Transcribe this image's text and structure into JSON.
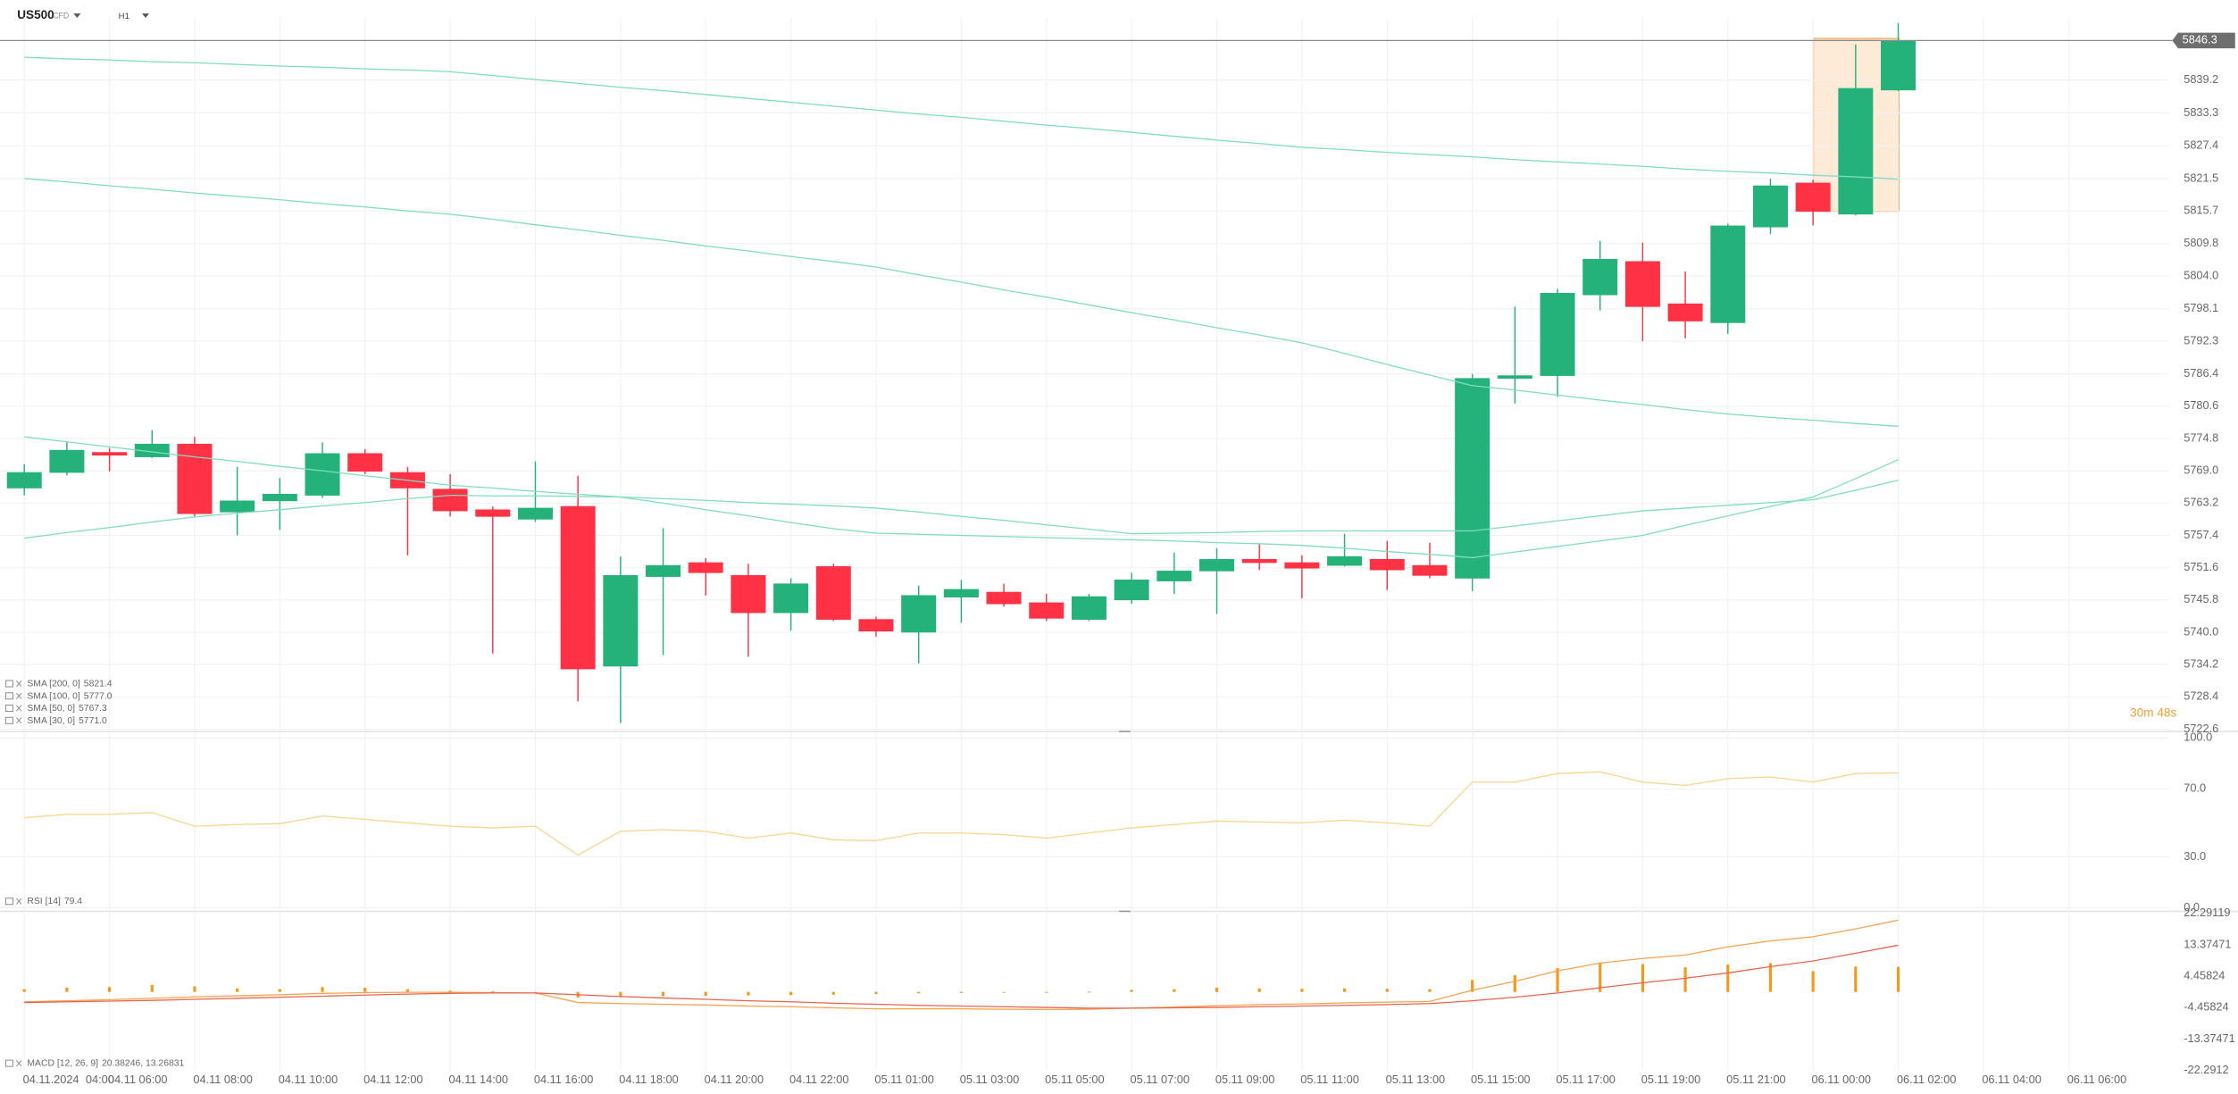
{
  "header": {
    "symbol": "US500",
    "instrument_type": "CFD",
    "timeframe": "H1"
  },
  "chart_data": [
    {
      "type": "candlestick",
      "date_label": "04.11.2024",
      "categories": [
        "04:00",
        null,
        "04.11 06:00",
        null,
        "04.11 08:00",
        null,
        "04.11 10:00",
        null,
        "04.11 12:00",
        null,
        "04.11 14:00",
        null,
        "04.11 16:00",
        null,
        "04.11 18:00",
        null,
        "04.11 20:00",
        null,
        "04.11 22:00",
        null,
        "05.11 01:00",
        null,
        "05.11 03:00",
        null,
        "05.11 05:00",
        null,
        "05.11 07:00",
        null,
        "05.11 09:00",
        null,
        "05.11 11:00",
        null,
        "05.11 13:00",
        null,
        "05.11 15:00",
        null,
        "05.11 17:00",
        null,
        "05.11 19:00",
        null,
        "05.11 21:00",
        null,
        "06.11 00:00",
        null,
        "06.11 02:00",
        null,
        "06.11 04:00",
        null,
        "06.11 06:00"
      ],
      "open": [
        5765.9,
        5768.7,
        5772.3,
        5771.5,
        5773.8,
        5761.6,
        5763.6,
        5764.6,
        5772.1,
        5768.7,
        5765.7,
        5762.0,
        5760.3,
        5762.6,
        5733.9,
        5750.0,
        5752.5,
        5750.2,
        5743.5,
        5751.8,
        5742.3,
        5740.0,
        5746.3,
        5747.2,
        5745.3,
        5742.3,
        5745.8,
        5749.2,
        5751.0,
        5753.1,
        5752.5,
        5752.0,
        5753.1,
        5752.0,
        5749.7,
        5785.6,
        5786.1,
        5800.6,
        5806.6,
        5799.0,
        5795.6,
        5812.8,
        5820.7,
        5815.1,
        5837.4,
        null,
        null,
        null,
        null
      ],
      "high": [
        5770.2,
        5774.2,
        5773.1,
        5776.3,
        5775.1,
        5769.7,
        5767.7,
        5774.1,
        5772.9,
        5769.7,
        5768.4,
        5762.6,
        5770.7,
        5768.1,
        5753.6,
        5758.7,
        5753.3,
        5752.3,
        5749.7,
        5752.3,
        5742.8,
        5748.4,
        5749.4,
        5748.7,
        5746.9,
        5746.9,
        5750.7,
        5754.3,
        5755.1,
        5755.9,
        5753.8,
        5757.7,
        5756.4,
        5756.1,
        5786.4,
        5798.5,
        5801.7,
        5810.3,
        5810.0,
        5804.8,
        5813.4,
        5821.5,
        5821.3,
        5845.6,
        5849.4,
        null,
        null,
        null,
        null
      ],
      "low": [
        5764.6,
        5768.2,
        5768.9,
        5771.3,
        5760.8,
        5757.4,
        5758.4,
        5764.1,
        5768.4,
        5753.8,
        5760.8,
        5736.2,
        5759.8,
        5727.6,
        5723.7,
        5735.9,
        5746.6,
        5735.6,
        5740.3,
        5742.0,
        5739.2,
        5734.4,
        5741.7,
        5744.6,
        5742.0,
        5742.0,
        5745.1,
        5746.9,
        5743.3,
        5751.2,
        5746.1,
        5751.8,
        5747.6,
        5749.7,
        5747.4,
        5781.1,
        5782.3,
        5797.8,
        5792.3,
        5792.8,
        5793.6,
        5811.5,
        5813.1,
        5814.9,
        5837.2,
        null,
        null,
        null,
        null
      ],
      "close": [
        5768.7,
        5772.7,
        5771.8,
        5773.8,
        5761.3,
        5763.6,
        5764.8,
        5772.1,
        5768.9,
        5765.9,
        5761.8,
        5760.8,
        5762.3,
        5733.4,
        5750.2,
        5752.0,
        5750.7,
        5743.5,
        5748.7,
        5742.3,
        5740.2,
        5746.6,
        5747.7,
        5745.1,
        5742.5,
        5746.4,
        5749.4,
        5751.0,
        5753.1,
        5752.5,
        5751.5,
        5753.6,
        5751.2,
        5750.2,
        5785.6,
        5786.1,
        5800.9,
        5807.0,
        5798.5,
        5795.9,
        5813.0,
        5820.2,
        5815.6,
        5837.7,
        5846.3,
        null,
        null,
        null,
        null
      ],
      "up_color": "#24b27a",
      "down_color": "#fe3145",
      "series": [
        {
          "name": "SMA [200, 0]",
          "legend_value": "5821.4",
          "color": "#7fdcc0",
          "values": [
            5843.3,
            5843.0,
            5842.8,
            5842.5,
            5842.3,
            5842.0,
            5841.7,
            5841.5,
            5841.2,
            5841.0,
            5840.7,
            5840.0,
            5839.3,
            5838.6,
            5837.9,
            5837.3,
            5836.6,
            5835.9,
            5835.2,
            5834.5,
            5833.8,
            5833.1,
            5832.5,
            5831.8,
            5831.1,
            5830.5,
            5829.8,
            5829.1,
            5828.4,
            5827.8,
            5827.1,
            5826.7,
            5826.2,
            5825.8,
            5825.4,
            5824.9,
            5824.5,
            5824.1,
            5823.7,
            5823.2,
            5822.8,
            5822.5,
            5822.1,
            5821.8,
            5821.4,
            null,
            null,
            null,
            null
          ]
        },
        {
          "name": "SMA [100, 0]",
          "legend_value": "5777.0",
          "color": "#7fdcc0",
          "values": [
            5821.5,
            5820.9,
            5820.2,
            5819.6,
            5818.9,
            5818.3,
            5817.7,
            5817.0,
            5816.4,
            5815.7,
            5815.1,
            5814.2,
            5813.2,
            5812.3,
            5811.3,
            5810.4,
            5809.4,
            5808.5,
            5807.5,
            5806.6,
            5805.6,
            5804.2,
            5802.9,
            5801.5,
            5800.2,
            5798.8,
            5797.4,
            5796.1,
            5794.7,
            5793.4,
            5792.0,
            5790.1,
            5788.1,
            5786.2,
            5784.3,
            5783.5,
            5782.6,
            5781.7,
            5780.9,
            5780.0,
            5779.2,
            5778.6,
            5778.1,
            5777.5,
            5777.0,
            null,
            null,
            null,
            null
          ]
        },
        {
          "name": "SMA [50, 0]",
          "legend_value": "5767.3",
          "color": "#7fdcc0",
          "values": [
            5756.9,
            5757.9,
            5758.8,
            5759.8,
            5760.7,
            5761.4,
            5762.0,
            5762.7,
            5763.3,
            5764.0,
            5764.6,
            5764.5,
            5764.5,
            5764.4,
            5764.3,
            5764.0,
            5763.7,
            5763.3,
            5763.0,
            5762.7,
            5762.3,
            5761.6,
            5760.8,
            5760.1,
            5759.3,
            5758.5,
            5757.7,
            5757.8,
            5757.9,
            5758.1,
            5758.2,
            5758.2,
            5758.2,
            5758.2,
            5758.2,
            5759.1,
            5760.0,
            5760.9,
            5761.8,
            5762.3,
            5762.8,
            5763.3,
            5763.8,
            5765.5,
            5767.3,
            null,
            null,
            null,
            null
          ]
        },
        {
          "name": "SMA [30, 0]",
          "legend_value": "5771.0",
          "color": "#7fdcc0",
          "values": [
            5775.1,
            5774.2,
            5773.3,
            5772.4,
            5771.5,
            5770.7,
            5769.8,
            5769.0,
            5768.1,
            5767.3,
            5766.4,
            5765.9,
            5765.3,
            5764.8,
            5764.3,
            5763.2,
            5762.0,
            5760.9,
            5759.7,
            5758.6,
            5757.8,
            5757.6,
            5757.4,
            5757.2,
            5757.0,
            5756.8,
            5756.6,
            5756.4,
            5756.1,
            5755.9,
            5755.6,
            5755.1,
            5754.5,
            5754.0,
            5753.4,
            5754.4,
            5755.4,
            5756.4,
            5757.4,
            5759.2,
            5760.9,
            5762.6,
            5764.3,
            5767.6,
            5771.0,
            null,
            null,
            null,
            null
          ]
        }
      ],
      "last_price": 5846.3,
      "countdown": "30m 48s",
      "ylim": [
        5722.3,
        5850.5
      ],
      "yticks": [
        5722.6,
        5728.4,
        5734.2,
        {
          "value": 5740.0,
          "label": "5740.0"
        },
        5745.8,
        5751.6,
        5757.4,
        5763.2,
        {
          "value": 5769.0,
          "label": "5769.0"
        },
        5774.8,
        5780.6,
        5786.4,
        5792.3,
        5798.1,
        {
          "value": 5804.0,
          "label": "5804.0"
        },
        5809.8,
        5815.7,
        5821.5,
        5827.4,
        5833.3,
        5839.2
      ],
      "grid": true
    },
    {
      "type": "line",
      "series": [
        {
          "name": "RSI [14]",
          "legend_value": "79.4",
          "color": "#f7d68c",
          "values": [
            53,
            55,
            55,
            56,
            48,
            49,
            49.5,
            54,
            52,
            50,
            48,
            47,
            48,
            31,
            45,
            46,
            45,
            41,
            44,
            40,
            39.5,
            44,
            44,
            43,
            41,
            44,
            47,
            49,
            51,
            50.5,
            50,
            51.5,
            50,
            48,
            74,
            74,
            79,
            80,
            74,
            72,
            76,
            77,
            74,
            79,
            79.4,
            null,
            null,
            null,
            null
          ]
        }
      ],
      "ylim": [
        0,
        100
      ],
      "yticks": [
        {
          "value": 0,
          "label": "0.0"
        },
        {
          "value": 30,
          "label": "30.0"
        },
        {
          "value": 70,
          "label": "70.0"
        },
        {
          "value": 100,
          "label": "100.0"
        }
      ]
    },
    {
      "type": "macd",
      "legend": {
        "name": "MACD [12, 26, 9]",
        "value": "20.38246, 13.26831"
      },
      "series": [
        {
          "name": "MACD",
          "color": "#f7a24c",
          "values": [
            -2.8,
            -2.5,
            -2.2,
            -1.8,
            -1.4,
            -1.1,
            -0.8,
            -0.4,
            -0.2,
            -0.1,
            -0.1,
            -0.2,
            -0.3,
            -3.0,
            -3.3,
            -3.5,
            -3.7,
            -4.0,
            -4.2,
            -4.5,
            -4.8,
            -4.8,
            -4.8,
            -4.9,
            -5.0,
            -4.9,
            -4.6,
            -4.3,
            -3.9,
            -3.6,
            -3.4,
            -3.1,
            -2.9,
            -2.7,
            0.5,
            3.0,
            6.0,
            8.2,
            9.5,
            10.5,
            12.8,
            14.5,
            15.7,
            17.9,
            20.38246,
            null,
            null,
            null,
            null
          ]
        },
        {
          "name": "Signal",
          "color": "#e8644e",
          "values": [
            -3.0,
            -2.8,
            -2.6,
            -2.4,
            -2.1,
            -1.8,
            -1.5,
            -1.2,
            -0.9,
            -0.6,
            -0.4,
            -0.3,
            -0.3,
            -0.8,
            -1.3,
            -1.7,
            -2.1,
            -2.5,
            -2.8,
            -3.2,
            -3.5,
            -3.8,
            -4.0,
            -4.2,
            -4.4,
            -4.6,
            -4.6,
            -4.5,
            -4.4,
            -4.2,
            -4.0,
            -3.8,
            -3.6,
            -3.3,
            -2.5,
            -1.5,
            -0.3,
            1.2,
            2.6,
            3.9,
            5.4,
            7.2,
            8.8,
            11.0,
            13.26831,
            null,
            null,
            null,
            null
          ]
        }
      ],
      "histogram": {
        "color": "#f39a1e",
        "values": [
          0.8,
          1.2,
          1.4,
          2.0,
          1.6,
          1.0,
          0.8,
          1.4,
          1.2,
          0.8,
          0.4,
          0.2,
          -0.4,
          -1.6,
          -1.4,
          -1.2,
          -1.1,
          -1.0,
          -0.9,
          -0.8,
          -0.6,
          -0.4,
          -0.3,
          -0.2,
          -0.1,
          0.1,
          0.6,
          0.8,
          1.2,
          1.0,
          0.9,
          1.0,
          0.9,
          0.8,
          3.4,
          4.8,
          6.8,
          8.4,
          7.9,
          7.0,
          7.8,
          8.2,
          5.9,
          7.2,
          7.11415,
          null,
          null,
          null,
          null
        ]
      },
      "ylim": [
        -22.3,
        22.3
      ],
      "yticks": [
        22.29119,
        13.37471,
        4.45824,
        -4.45824,
        -13.37471,
        -22.2912
      ]
    }
  ]
}
